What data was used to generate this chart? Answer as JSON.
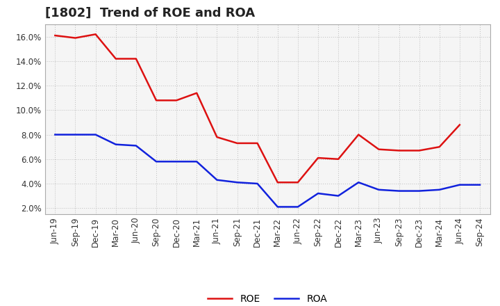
{
  "title": "[1802]  Trend of ROE and ROA",
  "x_labels": [
    "Jun-19",
    "Sep-19",
    "Dec-19",
    "Mar-20",
    "Jun-20",
    "Sep-20",
    "Dec-20",
    "Mar-21",
    "Jun-21",
    "Sep-21",
    "Dec-21",
    "Mar-22",
    "Jun-22",
    "Sep-22",
    "Dec-22",
    "Mar-23",
    "Jun-23",
    "Sep-23",
    "Dec-23",
    "Mar-24",
    "Jun-24",
    "Sep-24"
  ],
  "roe_values": [
    16.1,
    15.9,
    16.2,
    14.2,
    14.2,
    10.8,
    10.8,
    11.4,
    7.8,
    7.3,
    7.3,
    4.1,
    4.1,
    6.1,
    6.0,
    8.0,
    6.8,
    6.7,
    6.7,
    7.0,
    8.8,
    null
  ],
  "roa_values": [
    8.0,
    8.0,
    8.0,
    7.2,
    7.1,
    5.8,
    5.8,
    5.8,
    4.3,
    4.1,
    4.0,
    2.1,
    2.1,
    3.2,
    3.0,
    4.1,
    3.5,
    3.4,
    3.4,
    3.5,
    3.9,
    3.9
  ],
  "roe_color": "#dd1111",
  "roa_color": "#1122dd",
  "background_color": "#ffffff",
  "plot_bg_color": "#f5f5f5",
  "grid_color": "#bbbbbb",
  "ylim_min": 1.5,
  "ylim_max": 17.0,
  "yticks": [
    2.0,
    4.0,
    6.0,
    8.0,
    10.0,
    12.0,
    14.0,
    16.0
  ],
  "legend_labels": [
    "ROE",
    "ROA"
  ],
  "title_fontsize": 13,
  "axis_fontsize": 8.5,
  "legend_fontsize": 10,
  "line_width": 1.8
}
